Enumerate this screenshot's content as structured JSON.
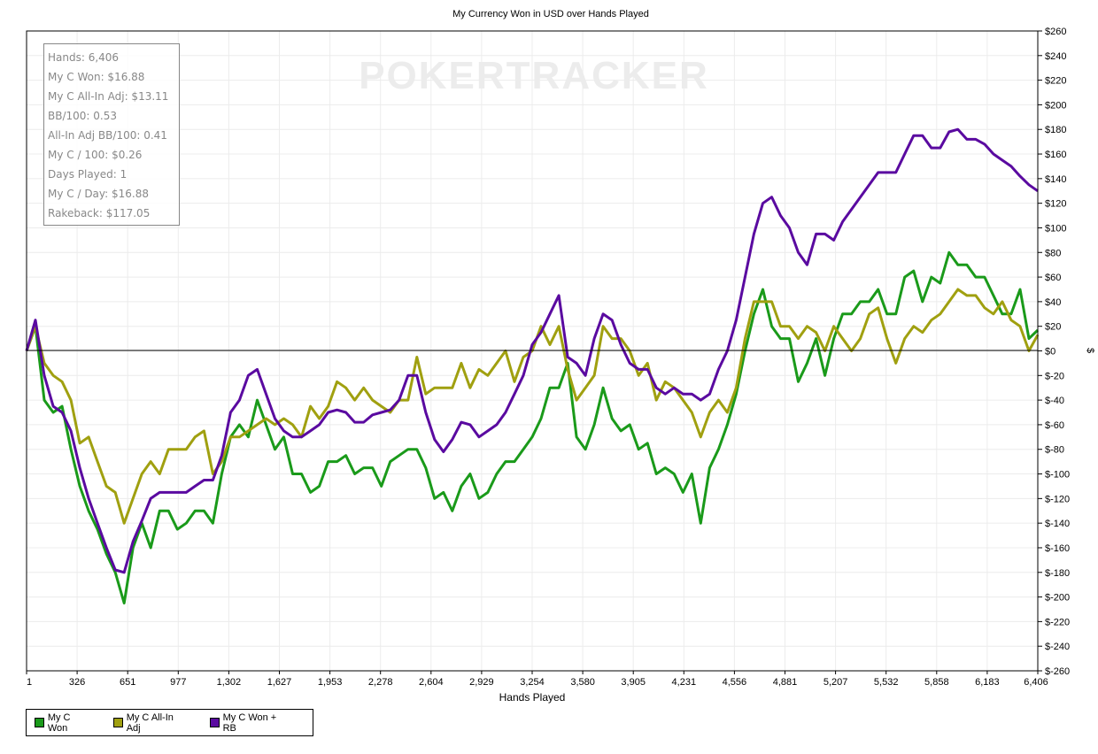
{
  "chart_data": {
    "type": "line",
    "title": "My Currency Won in USD over Hands Played",
    "xlabel": "Hands Played",
    "ylabel": "$",
    "xlim": [
      1,
      6406
    ],
    "ylim": [
      -260,
      260
    ],
    "grid": true,
    "x_ticks": [
      "1",
      "326",
      "651",
      "977",
      "1,302",
      "1,627",
      "1,953",
      "2,278",
      "2,604",
      "2,929",
      "3,254",
      "3,580",
      "3,905",
      "4,231",
      "4,556",
      "4,881",
      "5,207",
      "5,532",
      "5,858",
      "6,183",
      "6,406"
    ],
    "y_ticks": [
      "$260",
      "$240",
      "$220",
      "$200",
      "$180",
      "$160",
      "$140",
      "$120",
      "$100",
      "$80",
      "$60",
      "$40",
      "$20",
      "$0",
      "$-20",
      "$-40",
      "$-60",
      "$-80",
      "$-100",
      "$-120",
      "$-140",
      "$-160",
      "$-180",
      "$-200",
      "$-220",
      "$-240",
      "$-260"
    ],
    "legend_position": "bottom-left",
    "x_sampling": "values evenly spaced from hand 1 to hand 6406",
    "series": [
      {
        "name": "My C Won",
        "color": "#1a9a1a",
        "values": [
          0,
          20,
          -40,
          -50,
          -45,
          -80,
          -110,
          -130,
          -145,
          -165,
          -180,
          -205,
          -160,
          -140,
          -160,
          -130,
          -130,
          -145,
          -140,
          -130,
          -130,
          -140,
          -100,
          -70,
          -60,
          -70,
          -40,
          -60,
          -80,
          -70,
          -100,
          -100,
          -115,
          -110,
          -90,
          -90,
          -85,
          -100,
          -95,
          -95,
          -110,
          -90,
          -85,
          -80,
          -80,
          -95,
          -120,
          -115,
          -130,
          -110,
          -100,
          -120,
          -115,
          -100,
          -90,
          -90,
          -80,
          -70,
          -55,
          -30,
          -30,
          -10,
          -70,
          -80,
          -60,
          -30,
          -55,
          -65,
          -60,
          -80,
          -75,
          -100,
          -95,
          -100,
          -115,
          -100,
          -140,
          -95,
          -80,
          -60,
          -35,
          0,
          30,
          50,
          20,
          10,
          10,
          -25,
          -10,
          10,
          -20,
          10,
          30,
          30,
          40,
          40,
          50,
          30,
          30,
          60,
          65,
          40,
          60,
          55,
          80,
          70,
          70,
          60,
          60,
          45,
          30,
          30,
          50,
          10,
          16.88
        ]
      },
      {
        "name": "My C All-In Adj",
        "color": "#a0a010",
        "values": [
          0,
          20,
          -10,
          -20,
          -25,
          -40,
          -75,
          -70,
          -90,
          -110,
          -115,
          -140,
          -120,
          -100,
          -90,
          -100,
          -80,
          -80,
          -80,
          -70,
          -65,
          -100,
          -90,
          -70,
          -70,
          -65,
          -60,
          -55,
          -60,
          -55,
          -60,
          -70,
          -45,
          -55,
          -45,
          -25,
          -30,
          -40,
          -30,
          -40,
          -45,
          -50,
          -40,
          -40,
          -5,
          -35,
          -30,
          -30,
          -30,
          -10,
          -30,
          -15,
          -20,
          -10,
          0,
          -25,
          -5,
          0,
          20,
          5,
          20,
          -15,
          -40,
          -30,
          -20,
          20,
          10,
          10,
          0,
          -20,
          -10,
          -40,
          -25,
          -30,
          -40,
          -50,
          -70,
          -50,
          -40,
          -50,
          -30,
          10,
          40,
          40,
          40,
          20,
          20,
          10,
          20,
          15,
          0,
          20,
          10,
          0,
          10,
          30,
          35,
          10,
          -10,
          10,
          20,
          15,
          25,
          30,
          40,
          50,
          45,
          45,
          35,
          30,
          40,
          25,
          20,
          0,
          13.11
        ]
      },
      {
        "name": "My C Won + RB",
        "color": "#5a0aa0",
        "values": [
          0,
          25,
          -20,
          -45,
          -50,
          -65,
          -95,
          -120,
          -140,
          -160,
          -178,
          -180,
          -155,
          -138,
          -120,
          -115,
          -115,
          -115,
          -115,
          -110,
          -105,
          -105,
          -85,
          -50,
          -40,
          -20,
          -15,
          -35,
          -55,
          -65,
          -70,
          -70,
          -65,
          -60,
          -50,
          -48,
          -50,
          -58,
          -58,
          -52,
          -50,
          -48,
          -40,
          -20,
          -20,
          -50,
          -72,
          -82,
          -72,
          -58,
          -60,
          -70,
          -65,
          -60,
          -50,
          -35,
          -20,
          5,
          15,
          30,
          45,
          -5,
          -10,
          -20,
          10,
          30,
          25,
          5,
          -10,
          -15,
          -15,
          -30,
          -35,
          -30,
          -35,
          -35,
          -40,
          -35,
          -15,
          0,
          25,
          60,
          95,
          120,
          125,
          110,
          100,
          80,
          70,
          95,
          95,
          90,
          105,
          115,
          125,
          135,
          145,
          145,
          145,
          160,
          175,
          175,
          165,
          165,
          178,
          180,
          172,
          172,
          168,
          160,
          155,
          150,
          142,
          135,
          130
        ]
      }
    ]
  },
  "stats": {
    "lines": [
      "Hands: 6,406",
      "My C Won: $16.88",
      "My C All-In Adj: $13.11",
      "BB/100: 0.53",
      "All-In Adj BB/100: 0.41",
      "My C / 100: $0.26",
      "Days Played: 1",
      "My C / Day: $16.88",
      "Rakeback: $117.05"
    ]
  },
  "watermark": "POKERTRACKER"
}
